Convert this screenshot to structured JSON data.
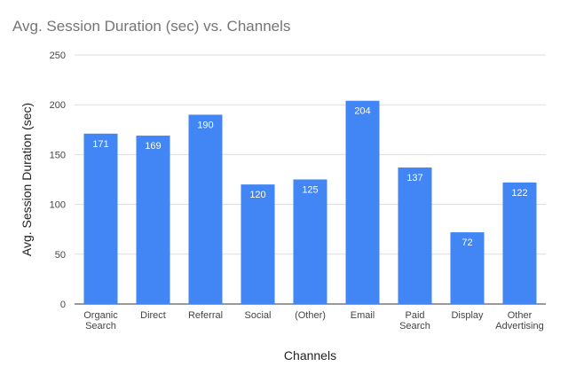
{
  "chart_data": {
    "type": "bar",
    "title": "Avg. Session Duration (sec) vs. Channels",
    "xlabel": "Channels",
    "ylabel": "Avg. Session Duration (sec)",
    "ylim": [
      0,
      250
    ],
    "yticks": [
      "0",
      "50",
      "100",
      "150",
      "200",
      "250"
    ],
    "grid": true,
    "color": "#4285f4",
    "categories": [
      [
        "Organic",
        "Search"
      ],
      [
        "Direct"
      ],
      [
        "Referral"
      ],
      [
        "Social"
      ],
      [
        "(Other)"
      ],
      [
        "Email"
      ],
      [
        "Paid",
        "Search"
      ],
      [
        "Display"
      ],
      [
        "Other",
        "Advertising"
      ]
    ],
    "values": [
      171,
      169,
      190,
      120,
      125,
      204,
      137,
      72,
      122
    ],
    "data_labels": [
      "171",
      "169",
      "190",
      "120",
      "125",
      "204",
      "137",
      "72",
      "122"
    ]
  }
}
